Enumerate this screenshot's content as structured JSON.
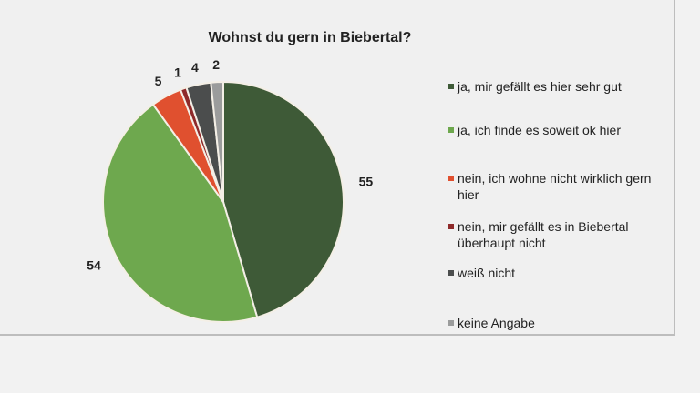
{
  "chart_data": {
    "type": "pie",
    "title": "Wohnst du gern in Biebertal?",
    "start_angle": "top",
    "direction": "clockwise",
    "legend_position": "right",
    "slices": [
      {
        "label": "ja, mir gefällt es hier sehr gut",
        "value": 55,
        "color": "#3e5a37"
      },
      {
        "label": "ja, ich finde es soweit ok hier",
        "value": 54,
        "color": "#6ea84e"
      },
      {
        "label": "nein, ich wohne nicht wirklich gern hier",
        "value": 5,
        "color": "#e0502f"
      },
      {
        "label": "nein, mir gefällt es in Biebertal überhaupt nicht",
        "value": 1,
        "color": "#8e2a2a"
      },
      {
        "label": "weiß nicht",
        "value": 4,
        "color": "#4b4d4d"
      },
      {
        "label": "keine Angabe",
        "value": 2,
        "color": "#9b9c9c"
      }
    ]
  }
}
